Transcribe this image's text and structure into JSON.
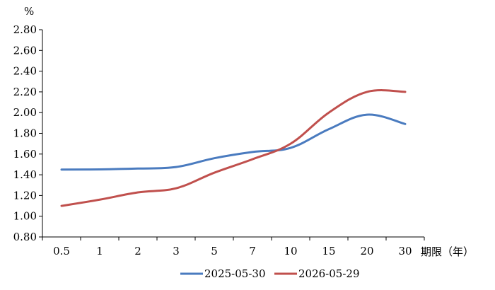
{
  "chart_data": {
    "type": "line",
    "title": "",
    "xlabel": "期限（年）",
    "ylabel": "%",
    "categories": [
      "0.5",
      "1",
      "2",
      "3",
      "5",
      "7",
      "10",
      "15",
      "20",
      "30"
    ],
    "ylim": [
      0.8,
      2.8
    ],
    "ytick_labels": [
      "0.80",
      "1.00",
      "1.20",
      "1.40",
      "1.60",
      "1.80",
      "2.00",
      "2.20",
      "2.40",
      "2.60",
      "2.80"
    ],
    "grid": false,
    "legend_position": "bottom",
    "series": [
      {
        "name": "2025-05-30",
        "color": "#4a7bbf",
        "values": [
          1.45,
          1.452,
          1.46,
          1.475,
          1.56,
          1.62,
          1.66,
          1.84,
          1.98,
          1.89
        ]
      },
      {
        "name": "2026-05-29",
        "color": "#c0504d",
        "values": [
          1.1,
          1.16,
          1.23,
          1.27,
          1.42,
          1.55,
          1.7,
          2.0,
          2.2,
          2.2
        ]
      }
    ]
  }
}
